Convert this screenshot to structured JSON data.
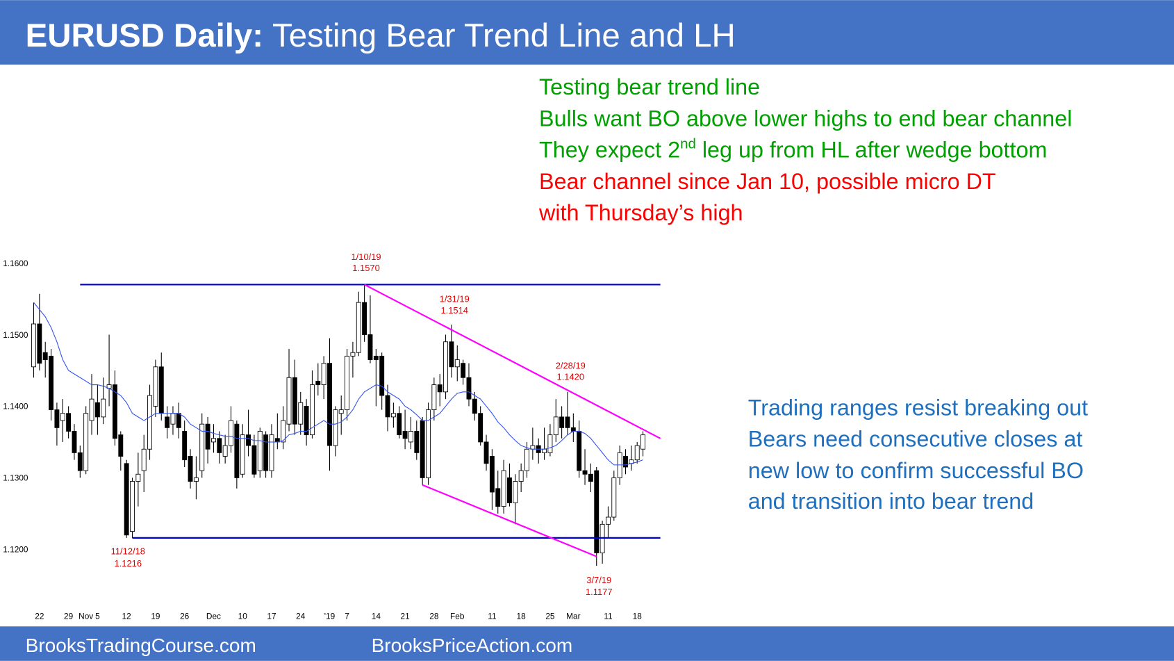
{
  "header": {
    "title_bold": "EURUSD Daily:",
    "title_rest": "Testing Bear Trend Line and LH"
  },
  "notes_green": [
    "Testing bear trend line",
    "Bulls want BO above lower highs to end bear channel",
    [
      "They expect 2",
      "nd",
      " leg up from HL after wedge bottom"
    ]
  ],
  "notes_red": [
    "Bear channel since Jan 10, possible micro DT",
    "with Thursday’s high"
  ],
  "notes_blue": [
    "Trading ranges resist breaking out",
    "Bears need consecutive closes at",
    "new low to confirm successful BO",
    "and transition into bear trend"
  ],
  "chart_data": {
    "type": "candlestick",
    "categories": [
      null,
      "22",
      null,
      null,
      null,
      null,
      "29",
      null,
      null,
      "Nov",
      null,
      "5",
      null,
      null,
      null,
      null,
      "12",
      null,
      null,
      null,
      null,
      "19",
      null,
      null,
      null,
      null,
      "26",
      null,
      null,
      null,
      null,
      "Dec",
      null,
      null,
      null,
      null,
      "10",
      null,
      null,
      null,
      null,
      "17",
      null,
      null,
      null,
      null,
      "24",
      null,
      null,
      null,
      null,
      "'19",
      null,
      null,
      "7",
      null,
      null,
      null,
      null,
      "14",
      null,
      null,
      null,
      null,
      "21",
      null,
      null,
      null,
      null,
      "28",
      null,
      null,
      null,
      "Feb",
      null,
      null,
      null,
      null,
      null,
      "11",
      null,
      null,
      null,
      null,
      "18",
      null,
      null,
      null,
      null,
      "25",
      null,
      null,
      null,
      "Mar",
      null,
      null,
      null,
      null,
      null,
      "11",
      null,
      null,
      null,
      null,
      "18",
      null
    ],
    "ohlc": [
      [
        1.1455,
        1.1545,
        1.144,
        1.1515
      ],
      [
        1.1515,
        1.1557,
        1.145,
        1.146
      ],
      [
        1.1475,
        1.149,
        1.144,
        1.1465
      ],
      [
        1.147,
        1.148,
        1.138,
        1.1395
      ],
      [
        1.1395,
        1.1405,
        1.1345,
        1.137
      ],
      [
        1.138,
        1.141,
        1.135,
        1.139
      ],
      [
        1.139,
        1.14,
        1.1355,
        1.1365
      ],
      [
        1.1365,
        1.1375,
        1.1325,
        1.1335
      ],
      [
        1.1335,
        1.1345,
        1.13,
        1.131
      ],
      [
        1.131,
        1.14,
        1.1305,
        1.139
      ],
      [
        1.138,
        1.1445,
        1.136,
        1.141
      ],
      [
        1.1405,
        1.143,
        1.136,
        1.1385
      ],
      [
        1.1385,
        1.144,
        1.1375,
        1.141
      ],
      [
        1.1425,
        1.15,
        1.14,
        1.143
      ],
      [
        1.143,
        1.145,
        1.1345,
        1.1355
      ],
      [
        1.136,
        1.1365,
        1.131,
        1.133
      ],
      [
        1.132,
        1.1325,
        1.1216,
        1.122
      ],
      [
        1.1225,
        1.13,
        1.1216,
        1.1295
      ],
      [
        1.1295,
        1.1335,
        1.126,
        1.1305
      ],
      [
        1.131,
        1.136,
        1.128,
        1.134
      ],
      [
        1.134,
        1.143,
        1.1325,
        1.1415
      ],
      [
        1.14,
        1.1465,
        1.1385,
        1.1455
      ],
      [
        1.1455,
        1.1475,
        1.138,
        1.139
      ],
      [
        1.1385,
        1.14,
        1.1355,
        1.137
      ],
      [
        1.1375,
        1.14,
        1.136,
        1.139
      ],
      [
        1.139,
        1.1405,
        1.1355,
        1.137
      ],
      [
        1.1365,
        1.138,
        1.1315,
        1.1325
      ],
      [
        1.133,
        1.134,
        1.1285,
        1.1295
      ],
      [
        1.1295,
        1.133,
        1.127,
        1.13
      ],
      [
        1.131,
        1.139,
        1.13,
        1.1375
      ],
      [
        1.1375,
        1.1385,
        1.132,
        1.134
      ],
      [
        1.135,
        1.1375,
        1.1335,
        1.1355
      ],
      [
        1.1355,
        1.1365,
        1.132,
        1.1335
      ],
      [
        1.133,
        1.136,
        1.132,
        1.1345
      ],
      [
        1.1345,
        1.14,
        1.1335,
        1.138
      ],
      [
        1.1375,
        1.138,
        1.1285,
        1.13
      ],
      [
        1.1305,
        1.1375,
        1.13,
        1.136
      ],
      [
        1.136,
        1.1395,
        1.133,
        1.1345
      ],
      [
        1.1345,
        1.136,
        1.13,
        1.1305
      ],
      [
        1.131,
        1.137,
        1.13,
        1.1365
      ],
      [
        1.136,
        1.1365,
        1.13,
        1.131
      ],
      [
        1.131,
        1.1375,
        1.13,
        1.136
      ],
      [
        1.1355,
        1.139,
        1.134,
        1.135
      ],
      [
        1.135,
        1.14,
        1.134,
        1.138
      ],
      [
        1.1375,
        1.148,
        1.1365,
        1.144
      ],
      [
        1.144,
        1.1465,
        1.136,
        1.1375
      ],
      [
        1.1375,
        1.142,
        1.136,
        1.1405
      ],
      [
        1.14,
        1.141,
        1.1345,
        1.136
      ],
      [
        1.136,
        1.145,
        1.1355,
        1.143
      ],
      [
        1.1435,
        1.146,
        1.1415,
        1.143
      ],
      [
        1.143,
        1.147,
        1.141,
        1.146
      ],
      [
        1.146,
        1.1495,
        1.131,
        1.1345
      ],
      [
        1.1345,
        1.14,
        1.133,
        1.1395
      ],
      [
        1.139,
        1.1415,
        1.136,
        1.1395
      ],
      [
        1.1395,
        1.148,
        1.138,
        1.147
      ],
      [
        1.147,
        1.149,
        1.144,
        1.1475
      ],
      [
        1.1475,
        1.156,
        1.147,
        1.1545
      ],
      [
        1.1545,
        1.157,
        1.149,
        1.15
      ],
      [
        1.15,
        1.1555,
        1.146,
        1.1465
      ],
      [
        1.147,
        1.148,
        1.14,
        1.1465
      ],
      [
        1.147,
        1.1475,
        1.1395,
        1.1415
      ],
      [
        1.1415,
        1.143,
        1.1365,
        1.1385
      ],
      [
        1.1385,
        1.1405,
        1.137,
        1.139
      ],
      [
        1.139,
        1.14,
        1.1355,
        1.136
      ],
      [
        1.1365,
        1.1395,
        1.134,
        1.1355
      ],
      [
        1.135,
        1.1385,
        1.134,
        1.1365
      ],
      [
        1.1365,
        1.138,
        1.1325,
        1.1335
      ],
      [
        1.138,
        1.1385,
        1.129,
        1.13
      ],
      [
        1.13,
        1.1405,
        1.129,
        1.1395
      ],
      [
        1.1395,
        1.144,
        1.138,
        1.143
      ],
      [
        1.143,
        1.1445,
        1.14,
        1.142
      ],
      [
        1.142,
        1.15,
        1.141,
        1.149
      ],
      [
        1.149,
        1.1514,
        1.144,
        1.1455
      ],
      [
        1.1455,
        1.1485,
        1.1435,
        1.1465
      ],
      [
        1.146,
        1.1465,
        1.143,
        1.144
      ],
      [
        1.144,
        1.146,
        1.14,
        1.141
      ],
      [
        1.141,
        1.142,
        1.138,
        1.139
      ],
      [
        1.139,
        1.14,
        1.1345,
        1.135
      ],
      [
        1.135,
        1.136,
        1.131,
        1.132
      ],
      [
        1.133,
        1.134,
        1.1255,
        1.128
      ],
      [
        1.1285,
        1.131,
        1.125,
        1.126
      ],
      [
        1.126,
        1.1325,
        1.125,
        1.131
      ],
      [
        1.13,
        1.132,
        1.126,
        1.1265
      ],
      [
        1.1265,
        1.1305,
        1.1235,
        1.1295
      ],
      [
        1.1295,
        1.132,
        1.128,
        1.131
      ],
      [
        1.131,
        1.135,
        1.13,
        1.134
      ],
      [
        1.134,
        1.137,
        1.1325,
        1.1345
      ],
      [
        1.1345,
        1.1355,
        1.132,
        1.1335
      ],
      [
        1.1335,
        1.137,
        1.1325,
        1.134
      ],
      [
        1.1335,
        1.1375,
        1.133,
        1.136
      ],
      [
        1.136,
        1.141,
        1.135,
        1.1385
      ],
      [
        1.1385,
        1.14,
        1.1355,
        1.137
      ],
      [
        1.1385,
        1.142,
        1.136,
        1.137
      ],
      [
        1.137,
        1.139,
        1.135,
        1.1365
      ],
      [
        1.1365,
        1.138,
        1.13,
        1.131
      ],
      [
        1.131,
        1.134,
        1.129,
        1.1305
      ],
      [
        1.1305,
        1.132,
        1.128,
        1.1295
      ],
      [
        1.131,
        1.1315,
        1.1177,
        1.1195
      ],
      [
        1.1195,
        1.124,
        1.118,
        1.1235
      ],
      [
        1.1235,
        1.126,
        1.1215,
        1.1245
      ],
      [
        1.1245,
        1.131,
        1.124,
        1.13
      ],
      [
        1.13,
        1.1345,
        1.129,
        1.1335
      ],
      [
        1.133,
        1.134,
        1.1305,
        1.1315
      ],
      [
        1.132,
        1.1345,
        1.131,
        1.1325
      ],
      [
        1.1325,
        1.135,
        1.132,
        1.1345
      ],
      [
        1.134,
        1.1365,
        1.133,
        1.136
      ]
    ],
    "ema": [
      1.1545,
      1.1535,
      1.1525,
      1.151,
      1.149,
      1.1465,
      1.145,
      1.1445,
      1.144,
      1.1435,
      1.143,
      1.143,
      1.1428,
      1.1425,
      1.142,
      1.1415,
      1.1405,
      1.139,
      1.1385,
      1.138,
      1.1385,
      1.139,
      1.139,
      1.139,
      1.139,
      1.139,
      1.1385,
      1.1375,
      1.137,
      1.1365,
      1.1365,
      1.1362,
      1.136,
      1.1358,
      1.1358,
      1.1355,
      1.1355,
      1.1355,
      1.1352,
      1.1352,
      1.135,
      1.135,
      1.135,
      1.1352,
      1.136,
      1.1362,
      1.1365,
      1.1365,
      1.137,
      1.1375,
      1.138,
      1.1375,
      1.1375,
      1.1378,
      1.1385,
      1.1395,
      1.141,
      1.142,
      1.1425,
      1.143,
      1.1428,
      1.142,
      1.1415,
      1.141,
      1.14,
      1.1395,
      1.1388,
      1.138,
      1.138,
      1.1385,
      1.139,
      1.14,
      1.141,
      1.1418,
      1.142,
      1.142,
      1.1415,
      1.141,
      1.14,
      1.139,
      1.1378,
      1.137,
      1.136,
      1.1352,
      1.1345,
      1.1342,
      1.134,
      1.134,
      1.134,
      1.1342,
      1.1345,
      1.1352,
      1.136,
      1.1365,
      1.1365,
      1.1362,
      1.1355,
      1.1345,
      1.1335,
      1.1325,
      1.1318,
      1.1318,
      1.1318,
      1.132,
      1.1322,
      1.1325
    ],
    "ema_color": "#3050f0",
    "up_color": "#ffffff",
    "down_color": "#000000",
    "ylim": [
      1.113,
      1.1622
    ],
    "yticks": [
      {
        "value": 1.12,
        "label": "1.1200"
      },
      {
        "value": 1.13,
        "label": "1.1300"
      },
      {
        "value": 1.14,
        "label": "1.1400"
      },
      {
        "value": 1.15,
        "label": "1.1500"
      },
      {
        "value": 1.16,
        "label": "1.1600"
      }
    ],
    "trendlines": [
      {
        "color": "#0000cc",
        "x": [
          8,
          108
        ],
        "y": [
          1.157,
          1.157
        ]
      },
      {
        "color": "#0000cc",
        "x": [
          17,
          108
        ],
        "y": [
          1.1216,
          1.1216
        ]
      },
      {
        "color": "#ff00ff",
        "x": [
          57,
          108
        ],
        "y": [
          1.157,
          1.1355
        ]
      },
      {
        "color": "#ff00ff",
        "x": [
          67,
          97
        ],
        "y": [
          1.129,
          1.119
        ]
      }
    ],
    "annotations": [
      {
        "date": "1/10/19",
        "price": {
          "value": 1.157,
          "label": "1.1570"
        }
      },
      {
        "date": "1/31/19",
        "price": {
          "value": 1.1514,
          "label": "1.1514"
        }
      },
      {
        "date": "2/28/19",
        "price": {
          "value": 1.142,
          "label": "1.1420"
        }
      },
      {
        "date": "11/12/18",
        "price": {
          "value": 1.1216,
          "label": "1.1216"
        }
      },
      {
        "date": "3/7/19",
        "price": {
          "value": 1.1177,
          "label": "1.1177"
        }
      }
    ]
  },
  "footer": {
    "left": "BrooksTradingCourse.com",
    "right": "BrooksPriceAction.com"
  }
}
